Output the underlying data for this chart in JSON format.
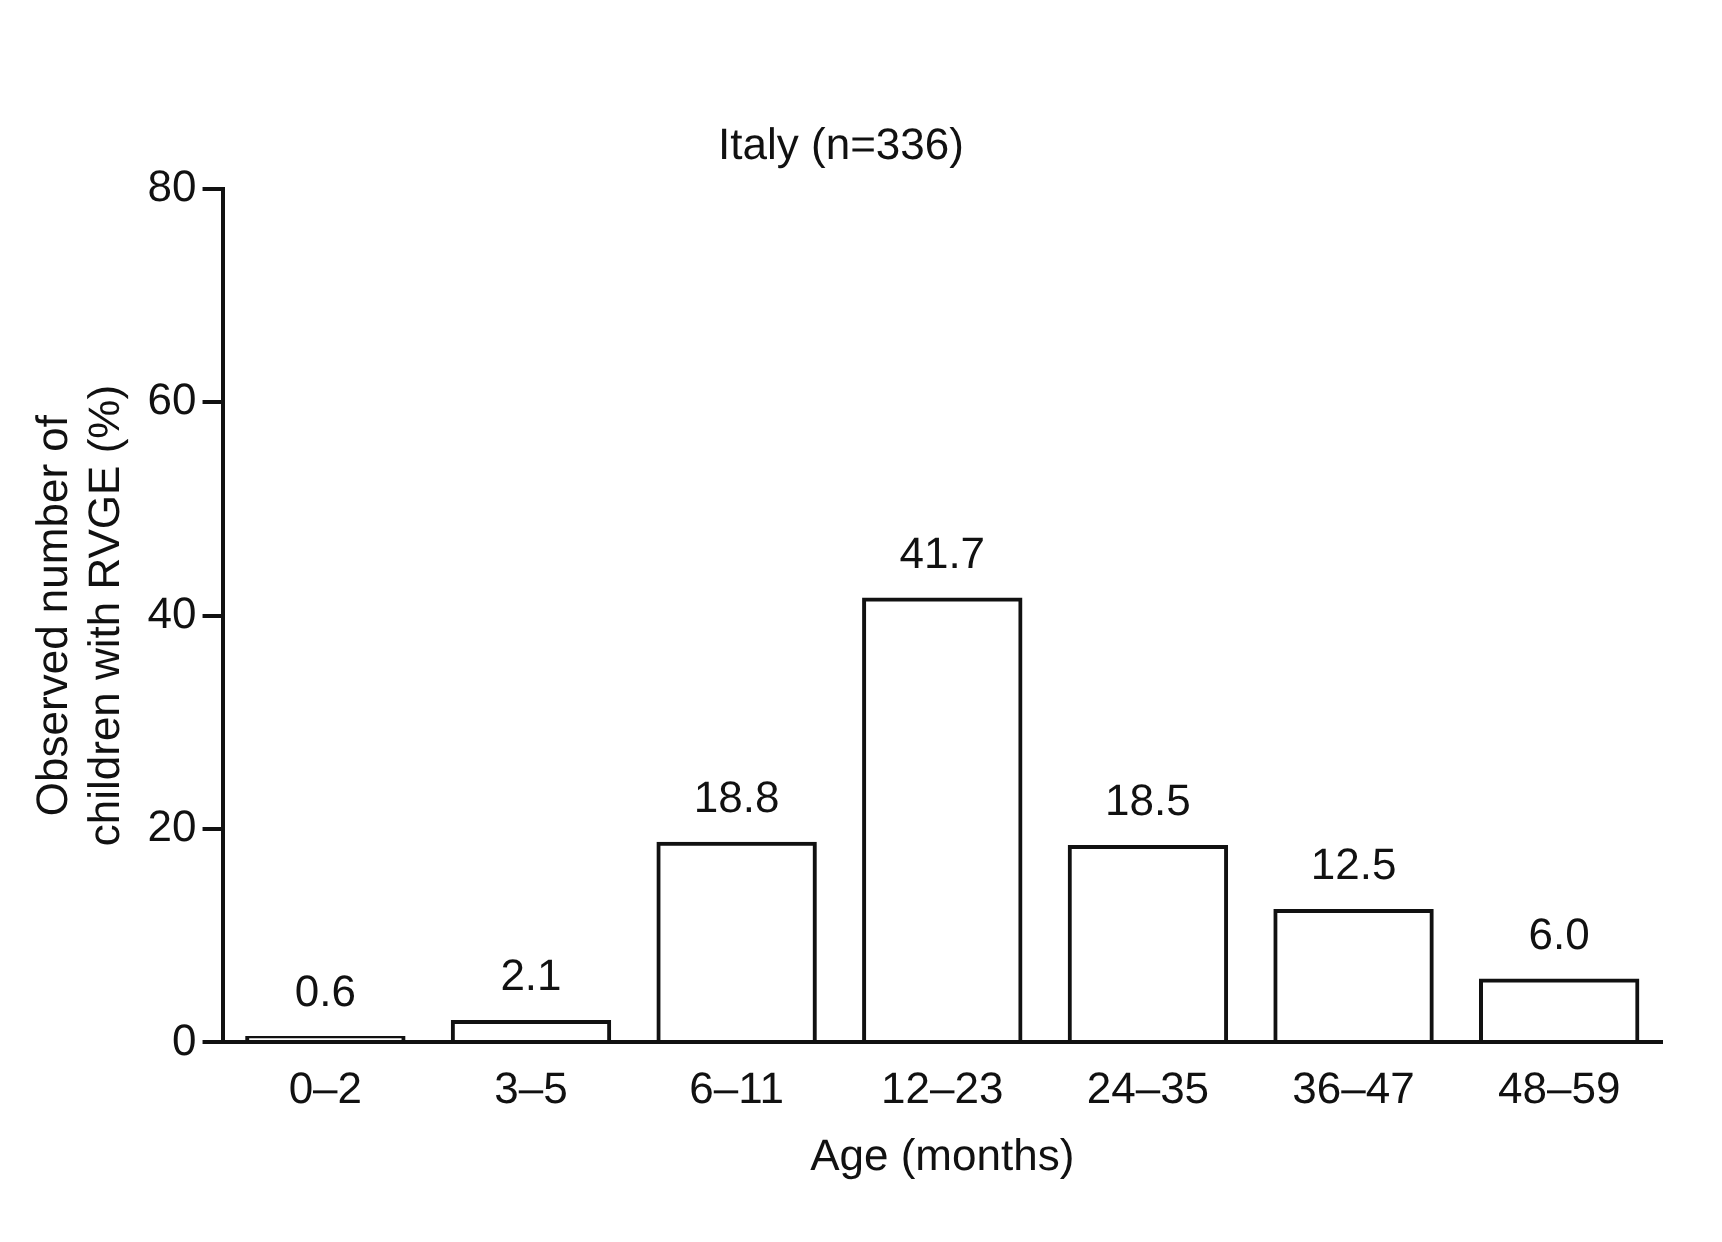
{
  "chart_data": {
    "type": "bar",
    "title": "Italy (n=336)",
    "xlabel": "Age (months)",
    "ylabel": "Observed number of\nchildren with RVGE (%)",
    "categories": [
      "0–2",
      "3–5",
      "6–11",
      "12–23",
      "24–35",
      "36–47",
      "48–59"
    ],
    "values": [
      0.6,
      2.1,
      18.8,
      41.7,
      18.5,
      12.5,
      6.0
    ],
    "value_labels": [
      "0.6",
      "2.1",
      "18.8",
      "41.7",
      "18.5",
      "12.5",
      "6.0"
    ],
    "color": "#111111",
    "ylim": [
      0,
      80
    ],
    "yticks": [
      0,
      20,
      40,
      60,
      80
    ],
    "grid": false,
    "legend": false
  }
}
